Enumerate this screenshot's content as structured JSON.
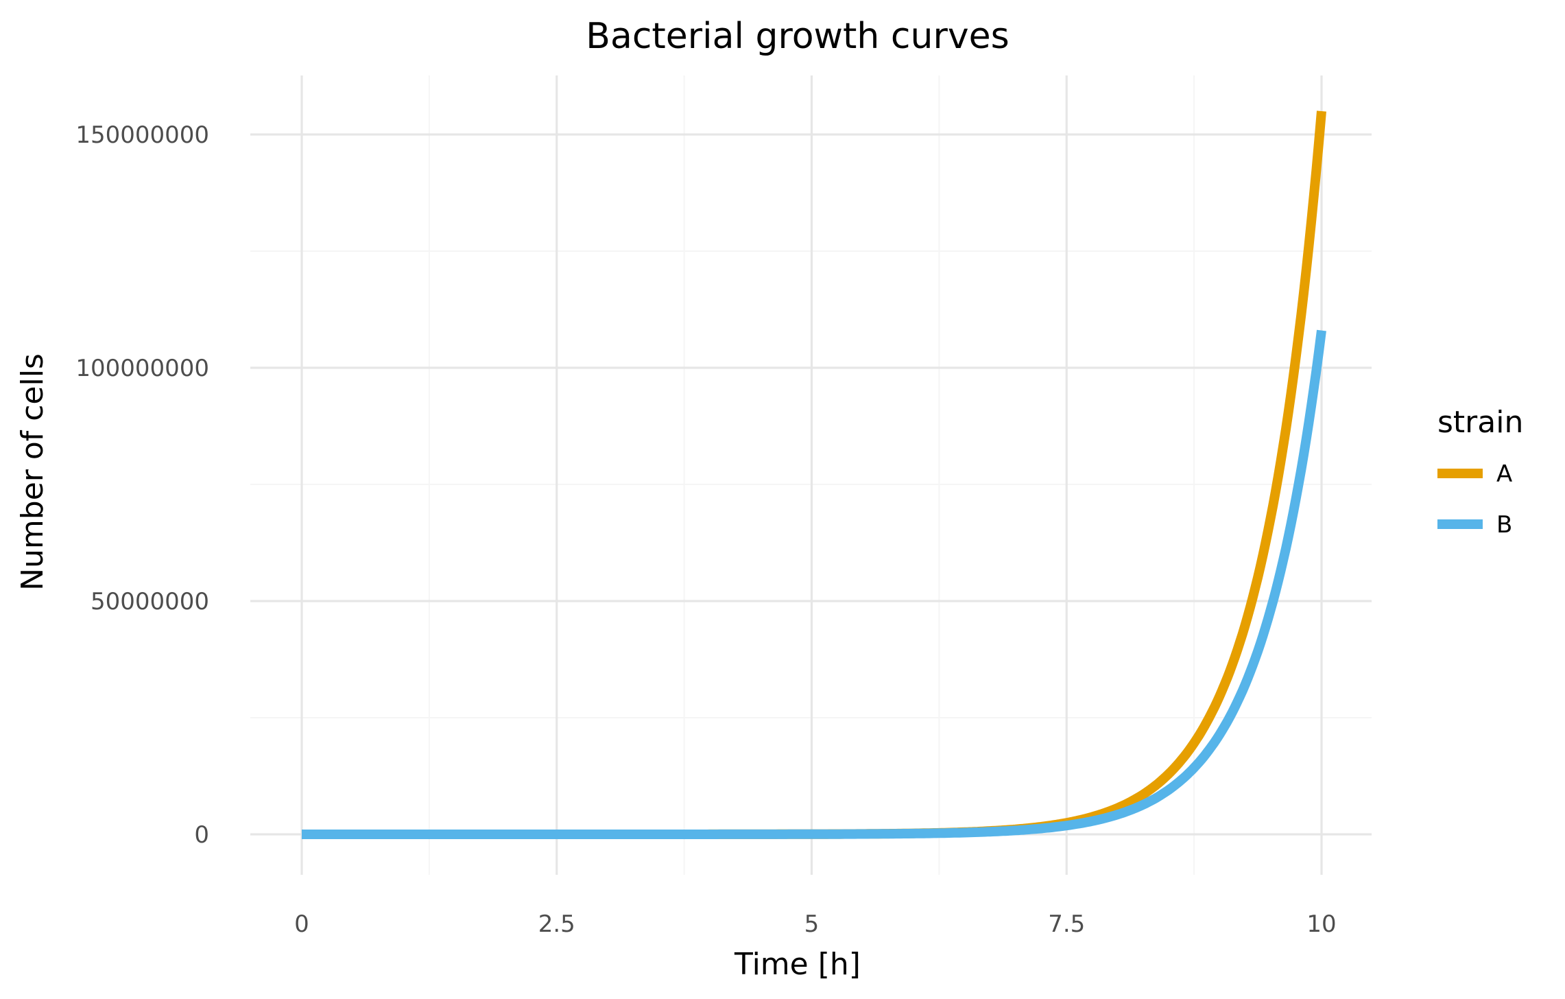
{
  "chart_data": {
    "type": "line",
    "title": "Bacterial growth curves",
    "xlabel": "Time [h]",
    "ylabel": "Number of cells",
    "xlim": [
      0,
      10
    ],
    "ylim": [
      0,
      155000000
    ],
    "x_ticks": [
      0,
      2.5,
      5,
      7.5,
      10
    ],
    "x_tick_labels": [
      "0",
      "2.5",
      "5",
      "7.5",
      "10"
    ],
    "y_ticks": [
      0,
      50000000,
      100000000,
      150000000
    ],
    "y_tick_labels": [
      "0",
      "50000000",
      "100000000",
      "150000000"
    ],
    "grid": true,
    "legend": {
      "title": "strain",
      "position": "right"
    },
    "x": [
      0,
      1,
      2,
      3,
      4,
      5,
      6,
      6.5,
      7,
      7.5,
      8,
      8.5,
      9,
      9.5,
      10
    ],
    "series": [
      {
        "name": "A",
        "color": "#E69F00",
        "values": [
          10,
          70,
          480,
          3400,
          23500,
          164000,
          1150000,
          3000000,
          7900000,
          880000,
          2850000,
          8500000,
          22300000,
          58500000,
          155000000
        ]
      },
      {
        "name": "B",
        "color": "#56B4E9",
        "values": [
          10,
          64,
          400,
          2550,
          16100,
          102000,
          650000,
          1640000,
          4100000,
          1030000,
          2900000,
          8000000,
          21000000,
          50000000,
          108000000
        ]
      }
    ]
  }
}
